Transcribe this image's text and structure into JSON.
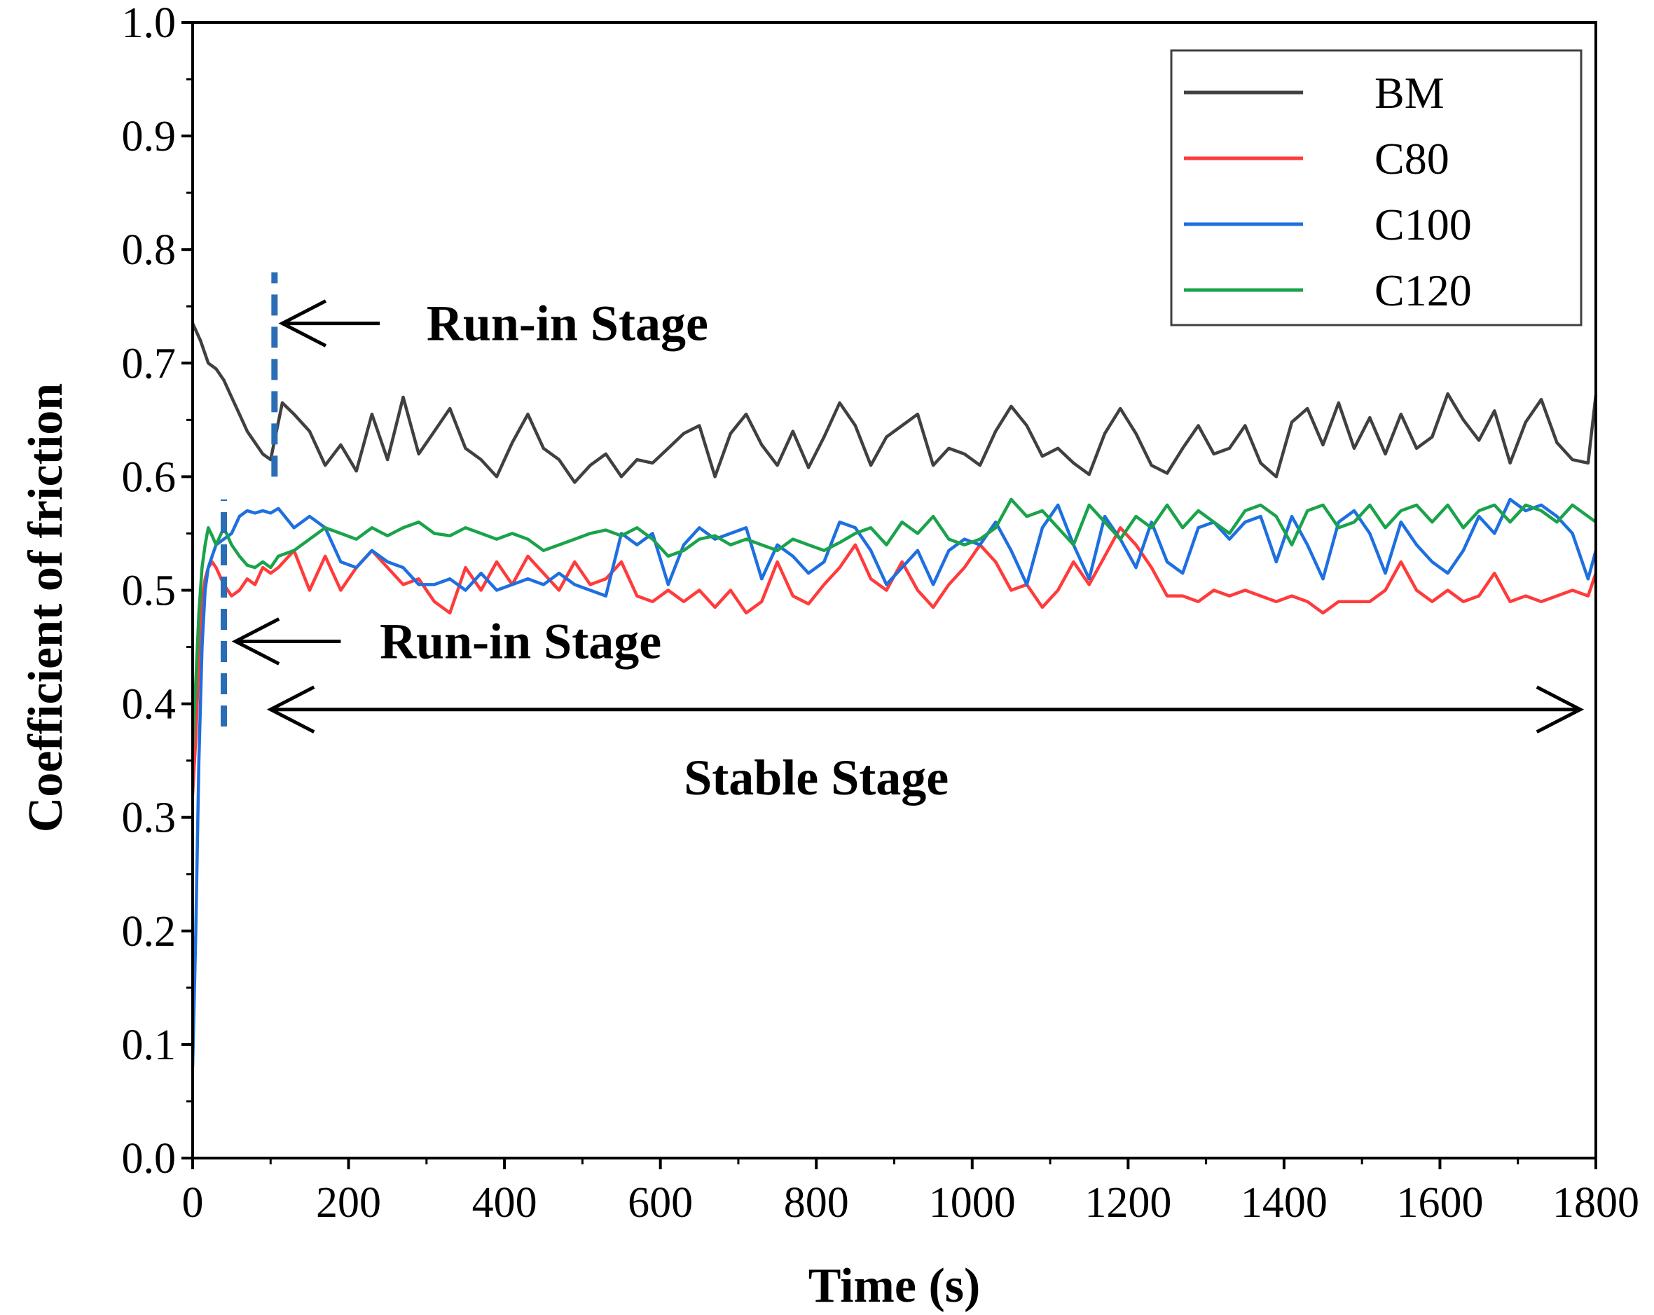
{
  "chart_data": {
    "type": "line",
    "title": "",
    "xlabel": "Time (s)",
    "ylabel": "Coefficient of friction",
    "xlim": [
      0,
      1800
    ],
    "ylim": [
      0.0,
      1.0
    ],
    "x_ticks": [
      "0",
      "200",
      "400",
      "600",
      "800",
      "1000",
      "1200",
      "1400",
      "1600",
      "1800"
    ],
    "y_ticks": [
      "0.0",
      "0.1",
      "0.2",
      "0.3",
      "0.4",
      "0.5",
      "0.6",
      "0.7",
      "0.8",
      "0.9",
      "1.0"
    ],
    "legend_position": "top-right",
    "series": [
      {
        "name": "BM",
        "color": "#404040",
        "x": [
          0,
          10,
          20,
          30,
          40,
          50,
          60,
          70,
          80,
          90,
          100,
          115,
          130,
          150,
          170,
          190,
          210,
          230,
          250,
          270,
          290,
          310,
          330,
          350,
          370,
          390,
          410,
          430,
          450,
          470,
          490,
          510,
          530,
          550,
          570,
          590,
          610,
          630,
          650,
          670,
          690,
          710,
          730,
          750,
          770,
          790,
          810,
          830,
          850,
          870,
          890,
          910,
          930,
          950,
          970,
          990,
          1010,
          1030,
          1050,
          1070,
          1090,
          1110,
          1130,
          1150,
          1170,
          1190,
          1210,
          1230,
          1250,
          1270,
          1290,
          1310,
          1330,
          1350,
          1370,
          1390,
          1410,
          1430,
          1450,
          1470,
          1490,
          1510,
          1530,
          1550,
          1570,
          1590,
          1610,
          1630,
          1650,
          1670,
          1690,
          1710,
          1730,
          1750,
          1770,
          1790,
          1800
        ],
        "y": [
          0.735,
          0.72,
          0.7,
          0.695,
          0.685,
          0.67,
          0.655,
          0.64,
          0.63,
          0.62,
          0.615,
          0.665,
          0.655,
          0.64,
          0.61,
          0.628,
          0.605,
          0.655,
          0.615,
          0.67,
          0.62,
          0.64,
          0.66,
          0.625,
          0.615,
          0.6,
          0.63,
          0.655,
          0.625,
          0.615,
          0.595,
          0.61,
          0.62,
          0.6,
          0.615,
          0.612,
          0.625,
          0.638,
          0.645,
          0.6,
          0.638,
          0.655,
          0.628,
          0.61,
          0.64,
          0.608,
          0.635,
          0.665,
          0.645,
          0.61,
          0.635,
          0.645,
          0.655,
          0.61,
          0.625,
          0.62,
          0.61,
          0.64,
          0.662,
          0.645,
          0.618,
          0.625,
          0.612,
          0.602,
          0.638,
          0.66,
          0.638,
          0.61,
          0.603,
          0.625,
          0.645,
          0.62,
          0.625,
          0.645,
          0.612,
          0.6,
          0.648,
          0.66,
          0.628,
          0.665,
          0.625,
          0.652,
          0.62,
          0.655,
          0.625,
          0.635,
          0.673,
          0.65,
          0.632,
          0.658,
          0.612,
          0.648,
          0.668,
          0.63,
          0.615,
          0.612,
          0.672
        ]
      },
      {
        "name": "C80",
        "color": "#ff3b3b",
        "x": [
          0,
          4,
          8,
          12,
          16,
          20,
          25,
          30,
          40,
          50,
          60,
          70,
          80,
          90,
          100,
          110,
          130,
          150,
          170,
          190,
          210,
          230,
          250,
          270,
          290,
          310,
          330,
          350,
          370,
          390,
          410,
          430,
          450,
          470,
          490,
          510,
          530,
          550,
          570,
          590,
          610,
          630,
          650,
          670,
          690,
          710,
          730,
          750,
          770,
          790,
          810,
          830,
          850,
          870,
          890,
          910,
          930,
          950,
          970,
          990,
          1010,
          1030,
          1050,
          1070,
          1090,
          1110,
          1130,
          1150,
          1170,
          1190,
          1210,
          1230,
          1250,
          1270,
          1290,
          1310,
          1330,
          1350,
          1370,
          1390,
          1410,
          1430,
          1450,
          1470,
          1490,
          1510,
          1530,
          1550,
          1570,
          1590,
          1610,
          1630,
          1650,
          1670,
          1690,
          1710,
          1730,
          1750,
          1770,
          1790,
          1800
        ],
        "y": [
          0.32,
          0.37,
          0.44,
          0.49,
          0.51,
          0.52,
          0.525,
          0.52,
          0.505,
          0.495,
          0.5,
          0.51,
          0.505,
          0.52,
          0.515,
          0.52,
          0.535,
          0.5,
          0.53,
          0.5,
          0.52,
          0.535,
          0.52,
          0.505,
          0.51,
          0.49,
          0.48,
          0.52,
          0.5,
          0.525,
          0.505,
          0.53,
          0.515,
          0.5,
          0.525,
          0.505,
          0.51,
          0.525,
          0.495,
          0.49,
          0.5,
          0.49,
          0.5,
          0.485,
          0.5,
          0.48,
          0.49,
          0.525,
          0.495,
          0.488,
          0.505,
          0.52,
          0.54,
          0.51,
          0.5,
          0.525,
          0.5,
          0.485,
          0.505,
          0.52,
          0.54,
          0.525,
          0.5,
          0.505,
          0.485,
          0.5,
          0.525,
          0.505,
          0.53,
          0.555,
          0.54,
          0.52,
          0.495,
          0.495,
          0.49,
          0.5,
          0.495,
          0.5,
          0.495,
          0.49,
          0.495,
          0.49,
          0.48,
          0.49,
          0.49,
          0.49,
          0.5,
          0.525,
          0.5,
          0.49,
          0.5,
          0.49,
          0.495,
          0.515,
          0.49,
          0.495,
          0.49,
          0.495,
          0.5,
          0.495,
          0.515
        ]
      },
      {
        "name": "C100",
        "color": "#1e6fe0",
        "x": [
          0,
          4,
          8,
          12,
          16,
          20,
          25,
          30,
          40,
          50,
          60,
          70,
          80,
          90,
          100,
          110,
          130,
          150,
          170,
          190,
          210,
          230,
          250,
          270,
          290,
          310,
          330,
          350,
          370,
          390,
          410,
          430,
          450,
          470,
          490,
          510,
          530,
          550,
          570,
          590,
          610,
          630,
          650,
          670,
          690,
          710,
          730,
          750,
          770,
          790,
          810,
          830,
          850,
          870,
          890,
          910,
          930,
          950,
          970,
          990,
          1010,
          1030,
          1050,
          1070,
          1090,
          1110,
          1130,
          1150,
          1170,
          1190,
          1210,
          1230,
          1250,
          1270,
          1290,
          1310,
          1330,
          1350,
          1370,
          1390,
          1410,
          1430,
          1450,
          1470,
          1490,
          1510,
          1530,
          1550,
          1570,
          1590,
          1610,
          1630,
          1650,
          1670,
          1690,
          1710,
          1730,
          1750,
          1770,
          1790,
          1800
        ],
        "y": [
          0.08,
          0.2,
          0.35,
          0.45,
          0.5,
          0.52,
          0.53,
          0.54,
          0.545,
          0.55,
          0.565,
          0.57,
          0.568,
          0.57,
          0.568,
          0.572,
          0.555,
          0.565,
          0.555,
          0.525,
          0.52,
          0.535,
          0.525,
          0.52,
          0.505,
          0.505,
          0.51,
          0.5,
          0.515,
          0.5,
          0.505,
          0.51,
          0.505,
          0.515,
          0.505,
          0.5,
          0.495,
          0.55,
          0.54,
          0.55,
          0.505,
          0.54,
          0.555,
          0.545,
          0.55,
          0.555,
          0.51,
          0.54,
          0.53,
          0.515,
          0.525,
          0.56,
          0.555,
          0.535,
          0.505,
          0.52,
          0.535,
          0.505,
          0.535,
          0.545,
          0.54,
          0.56,
          0.535,
          0.505,
          0.555,
          0.575,
          0.54,
          0.51,
          0.565,
          0.545,
          0.52,
          0.56,
          0.525,
          0.515,
          0.555,
          0.56,
          0.545,
          0.56,
          0.565,
          0.525,
          0.565,
          0.54,
          0.51,
          0.56,
          0.57,
          0.55,
          0.515,
          0.56,
          0.54,
          0.525,
          0.515,
          0.535,
          0.565,
          0.55,
          0.58,
          0.57,
          0.575,
          0.565,
          0.55,
          0.51,
          0.535
        ]
      },
      {
        "name": "C120",
        "color": "#1aa34a",
        "x": [
          0,
          4,
          8,
          12,
          16,
          20,
          25,
          30,
          40,
          50,
          60,
          70,
          80,
          90,
          100,
          110,
          130,
          150,
          170,
          190,
          210,
          230,
          250,
          270,
          290,
          310,
          330,
          350,
          370,
          390,
          410,
          430,
          450,
          470,
          490,
          510,
          530,
          550,
          570,
          590,
          610,
          630,
          650,
          670,
          690,
          710,
          730,
          750,
          770,
          790,
          810,
          830,
          850,
          870,
          890,
          910,
          930,
          950,
          970,
          990,
          1010,
          1030,
          1050,
          1070,
          1090,
          1110,
          1130,
          1150,
          1170,
          1190,
          1210,
          1230,
          1250,
          1270,
          1290,
          1310,
          1330,
          1350,
          1370,
          1390,
          1410,
          1430,
          1450,
          1470,
          1490,
          1510,
          1530,
          1550,
          1570,
          1590,
          1610,
          1630,
          1650,
          1670,
          1690,
          1710,
          1730,
          1750,
          1770,
          1790,
          1800
        ],
        "y": [
          0.36,
          0.42,
          0.48,
          0.52,
          0.54,
          0.555,
          0.548,
          0.54,
          0.555,
          0.54,
          0.53,
          0.522,
          0.52,
          0.525,
          0.52,
          0.53,
          0.535,
          0.545,
          0.555,
          0.55,
          0.545,
          0.555,
          0.548,
          0.555,
          0.56,
          0.55,
          0.548,
          0.555,
          0.55,
          0.545,
          0.55,
          0.545,
          0.535,
          0.54,
          0.545,
          0.55,
          0.553,
          0.548,
          0.555,
          0.545,
          0.53,
          0.535,
          0.545,
          0.548,
          0.54,
          0.545,
          0.54,
          0.535,
          0.545,
          0.54,
          0.535,
          0.542,
          0.55,
          0.555,
          0.54,
          0.56,
          0.55,
          0.565,
          0.545,
          0.54,
          0.545,
          0.555,
          0.58,
          0.565,
          0.57,
          0.555,
          0.54,
          0.575,
          0.56,
          0.545,
          0.565,
          0.555,
          0.575,
          0.555,
          0.57,
          0.56,
          0.55,
          0.57,
          0.575,
          0.565,
          0.54,
          0.57,
          0.575,
          0.555,
          0.56,
          0.575,
          0.555,
          0.57,
          0.575,
          0.56,
          0.575,
          0.555,
          0.57,
          0.575,
          0.56,
          0.575,
          0.57,
          0.56,
          0.575,
          0.565,
          0.56
        ]
      }
    ],
    "annotations": [
      {
        "name": "run-in-stage-upper",
        "text": "Run-in Stage",
        "marker_x": 105,
        "marker_y": [
          0.6,
          0.78
        ],
        "marker_color": "#2a6db5",
        "arrow_tip": [
          115,
          0.735
        ],
        "arrow_tail": [
          240,
          0.735
        ],
        "label_at": [
          300,
          0.735
        ]
      },
      {
        "name": "run-in-stage-lower",
        "text": "Run-in Stage",
        "marker_x": 40,
        "marker_y": [
          0.38,
          0.58
        ],
        "marker_color": "#2a6db5",
        "arrow_tip": [
          55,
          0.455
        ],
        "arrow_tail": [
          190,
          0.455
        ],
        "label_at": [
          240,
          0.455
        ]
      },
      {
        "name": "stable-stage",
        "text": "Stable Stage",
        "arrow_from": [
          100,
          0.395
        ],
        "arrow_to": [
          1780,
          0.395
        ],
        "label_at": [
          800,
          0.335
        ]
      }
    ]
  }
}
